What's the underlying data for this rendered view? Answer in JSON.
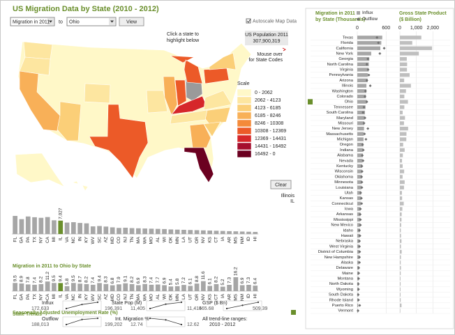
{
  "header": {
    "title": "US Migration Data by State (2010 - 2012)"
  },
  "controls": {
    "measure": "Migration in 2011",
    "to": "to",
    "state": "Ohio",
    "view": "View",
    "autoscale": "Autoscale Map Data"
  },
  "map": {
    "hint": [
      "Click a state to",
      "highlight below"
    ],
    "population_label": "US Population 2011",
    "population": "307,900,319",
    "mouse_over": [
      "Mouse over",
      "for State Codes"
    ],
    "scale_title": "Scale",
    "scale": [
      {
        "label": "0 - 2062",
        "color": "#fff8c8"
      },
      {
        "label": "2062 - 4123",
        "color": "#fde6a0"
      },
      {
        "label": "4123 - 6185",
        "color": "#fbcf78"
      },
      {
        "label": "6185 - 8246",
        "color": "#f8b058"
      },
      {
        "label": "8246 - 10308",
        "color": "#f48a3a"
      },
      {
        "label": "10308 - 12369",
        "color": "#ec5a28"
      },
      {
        "label": "12369 - 14431",
        "color": "#d6262a"
      },
      {
        "label": "14431 - 16492",
        "color": "#a50e2e"
      },
      {
        "label": "16492 - 0",
        "color": "#6b0020"
      }
    ],
    "clear": "Clear",
    "selected_state": "Illinois",
    "selected_code": "IL"
  },
  "chart_data": [
    {
      "type": "bar",
      "title": "Migration in 2011 to Ohio by State",
      "color": "#a6a6a6",
      "highlight_color": "#6a8f2c",
      "categories": [
        "FL",
        "GA",
        "PA",
        "TX",
        "NY",
        "CA",
        "MI",
        "IL",
        "VA",
        "NC",
        "IN",
        "KY",
        "WV",
        "SC",
        "AZ",
        "MD",
        "CO",
        "NJ",
        "TN",
        "MA",
        "WA",
        "MO",
        "AL",
        "WI",
        "OK",
        "MN",
        "LA",
        "UT",
        "OR",
        "NV",
        "KS",
        "CT",
        "IA",
        "AR",
        "MS",
        "NM",
        "ID",
        "HI"
      ],
      "values": [
        9500,
        7800,
        9200,
        8800,
        8500,
        8900,
        7200,
        7027,
        6000,
        6200,
        5800,
        5600,
        4000,
        4200,
        3900,
        3500,
        3200,
        3300,
        3100,
        3000,
        2900,
        2800,
        2700,
        2600,
        2400,
        2300,
        2200,
        2100,
        2000,
        1900,
        1800,
        1700,
        1600,
        1500,
        1400,
        1300,
        1200,
        1100
      ],
      "value_labels": [
        null,
        null,
        null,
        null,
        null,
        null,
        null,
        "7,027",
        null,
        null,
        null,
        null,
        null,
        null,
        null,
        null,
        null,
        null,
        null,
        null,
        null,
        null,
        null,
        null,
        null,
        null,
        null,
        null,
        null,
        null,
        null,
        null,
        null,
        null,
        null,
        null,
        null,
        null
      ]
    },
    {
      "type": "bar",
      "title": "Seasonally Adjusted Unemployment Rate (%)",
      "color": "#a6a6a6",
      "highlight_color": "#6a8f2c",
      "categories": [
        "FL",
        "GA",
        "PA",
        "TX",
        "NY",
        "CA",
        "MI",
        "IL",
        "VA",
        "NC",
        "IN",
        "KY",
        "WV",
        "SC",
        "AZ",
        "MD",
        "CO",
        "NJ",
        "TN",
        "MA",
        "WA",
        "MO",
        "AL",
        "WI",
        "OK",
        "MN",
        "LA",
        "UT",
        "OR",
        "NV",
        "KS",
        "CT",
        "IA",
        "AR",
        "MS",
        "NM",
        "ID",
        "HI"
      ],
      "values": [
        9.5,
        8.9,
        7.8,
        7.4,
        8.2,
        11.2,
        9.5,
        9.4,
        5.8,
        9.5,
        8.7,
        8.2,
        7.4,
        9.4,
        8.3,
        6.8,
        7.9,
        9.1,
        8.2,
        6.9,
        8.3,
        7.4,
        7.7,
        6.9,
        5.4,
        5.8,
        7.2,
        6.1,
        8.8,
        11.6,
        6.1,
        8.2,
        5.2,
        7.3,
        16.2,
        6.9,
        7.3,
        6.4
      ]
    },
    {
      "type": "hbar",
      "title": [
        "Migration in 2011",
        "by State (Thousands)"
      ],
      "xlim": [
        0,
        800
      ],
      "xticks": [
        0,
        600
      ],
      "categories": [
        "Texas",
        "Florida",
        "California",
        "New York",
        "Georgia",
        "North Carolina",
        "Virginia",
        "Pennsylvania",
        "Arizona",
        "Illinois",
        "Washington",
        "Colorado",
        "Ohio",
        "Tennessee",
        "South Carolina",
        "Maryland",
        "Missouri",
        "New Jersey",
        "Massachusetts",
        "Michigan",
        "Oregon",
        "Indiana",
        "Alabama",
        "Nevada",
        "Kentucky",
        "Wisconsin",
        "Oklahoma",
        "Minnesota",
        "Louisiana",
        "Utah",
        "Kansas",
        "Connecticut",
        "Iowa",
        "Arkansas",
        "Mississippi",
        "New Mexico",
        "Idaho",
        "Hawaii",
        "Nebraska",
        "West Virginia",
        "District of Columbia",
        "New Hampshire",
        "Alaska",
        "Delaware",
        "Maine",
        "Montana",
        "North Dakota",
        "Wyoming",
        "South Dakota",
        "Rhode Island",
        "Puerto Rico",
        "Vermont"
      ],
      "series": [
        {
          "name": "Influx",
          "color": "#a6a6a6",
          "values": [
            520,
            500,
            480,
            290,
            250,
            240,
            235,
            220,
            215,
            190,
            190,
            180,
            196,
            170,
            160,
            155,
            145,
            140,
            135,
            130,
            125,
            120,
            115,
            110,
            100,
            95,
            95,
            90,
            85,
            80,
            80,
            75,
            65,
            65,
            60,
            60,
            55,
            50,
            45,
            45,
            45,
            45,
            35,
            35,
            30,
            30,
            30,
            25,
            22,
            20,
            20,
            15
          ]
        },
        {
          "name": "Outflow",
          "color": "#6e6e6e",
          "values": [
            410,
            440,
            560,
            470,
            220,
            200,
            225,
            240,
            200,
            270,
            170,
            160,
            199,
            140,
            120,
            160,
            140,
            220,
            150,
            180,
            110,
            125,
            105,
            120,
            95,
            100,
            90,
            95,
            95,
            70,
            85,
            90,
            65,
            60,
            65,
            65,
            45,
            55,
            45,
            45,
            50,
            45,
            45,
            30,
            30,
            28,
            22,
            25,
            20,
            25,
            50,
            15
          ]
        }
      ]
    },
    {
      "type": "hbar",
      "title": [
        "Gross State Product",
        "($ Billion)"
      ],
      "color": "#bfbfbf",
      "xlim": [
        0,
        2200
      ],
      "xticks": [
        0,
        {
          "value": 1000,
          "label": "1,000"
        },
        {
          "value": 2000,
          "label": "2,000"
        }
      ],
      "values": [
        1300,
        750,
        1950,
        1150,
        420,
        440,
        430,
        590,
        260,
        670,
        370,
        270,
        490,
        270,
        170,
        310,
        250,
        500,
        400,
        390,
        200,
        290,
        180,
        130,
        170,
        260,
        165,
        290,
        250,
        125,
        135,
        235,
        150,
        110,
        100,
        80,
        58,
        70,
        98,
        68,
        110,
        65,
        52,
        65,
        52,
        39,
        45,
        38,
        42,
        50,
        100,
        27
      ]
    }
  ],
  "trends": {
    "title": "State Trends",
    "range_note": [
      "All trend-line ranges:",
      "2010 - 2012"
    ],
    "items": [
      {
        "label": "Influx",
        "start": "172,633",
        "end": "196,391",
        "values": [
          172633,
          188000,
          196391
        ]
      },
      {
        "label": "State Pop (M)",
        "start": "11,405",
        "end": "11,415",
        "values": [
          11405,
          11412,
          11415
        ]
      },
      {
        "label": "GSP ($ Bn)",
        "start": "465.68",
        "end": "509.39",
        "values": [
          465.68,
          488,
          509.39
        ]
      },
      {
        "label": "Outflow",
        "start": "188,013",
        "end": "199,202",
        "values": [
          188013,
          197000,
          199202
        ]
      },
      {
        "label": "Int. Migration %",
        "start": "12.74",
        "end": "12.62",
        "values": [
          12.74,
          12.71,
          12.62
        ]
      }
    ]
  }
}
